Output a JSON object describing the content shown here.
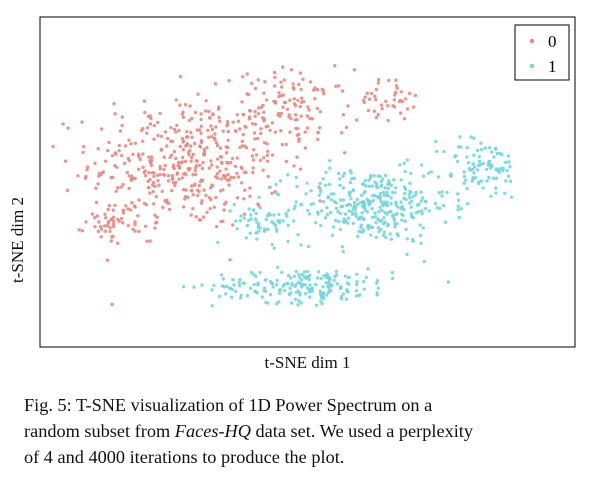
{
  "chart_data": {
    "type": "scatter",
    "xlabel": "t-SNE dim 1",
    "ylabel": "t-SNE dim 2",
    "grid": false,
    "legend": "top-right",
    "xticks": [],
    "yticks": [],
    "xlim": [
      0,
      1
    ],
    "ylim": [
      0,
      1
    ],
    "series": [
      {
        "name": "0",
        "color": "#e58a82",
        "clusters": [
          {
            "x": 0.27,
            "y": 0.57,
            "sx": 0.17,
            "sy": 0.2,
            "n": 430
          },
          {
            "x": 0.48,
            "y": 0.74,
            "sx": 0.1,
            "sy": 0.12,
            "n": 120
          },
          {
            "x": 0.66,
            "y": 0.77,
            "sx": 0.05,
            "sy": 0.06,
            "n": 40
          },
          {
            "x": 0.13,
            "y": 0.38,
            "sx": 0.05,
            "sy": 0.06,
            "n": 50
          }
        ]
      },
      {
        "name": "1",
        "color": "#73d6dc",
        "clusters": [
          {
            "x": 0.63,
            "y": 0.43,
            "sx": 0.14,
            "sy": 0.11,
            "n": 330
          },
          {
            "x": 0.85,
            "y": 0.55,
            "sx": 0.07,
            "sy": 0.09,
            "n": 90
          },
          {
            "x": 0.5,
            "y": 0.17,
            "sx": 0.16,
            "sy": 0.05,
            "n": 190
          },
          {
            "x": 0.42,
            "y": 0.38,
            "sx": 0.05,
            "sy": 0.06,
            "n": 50
          }
        ]
      }
    ]
  },
  "caption": {
    "line1": "Fig. 5: T-SNE visualization of 1D Power Spectrum on a",
    "line2_pre": "random subset from ",
    "line2_em": "Faces-HQ",
    "line2_post": " data set. We used a perplexity",
    "line3": "of 4 and 4000 iterations to produce the plot."
  }
}
